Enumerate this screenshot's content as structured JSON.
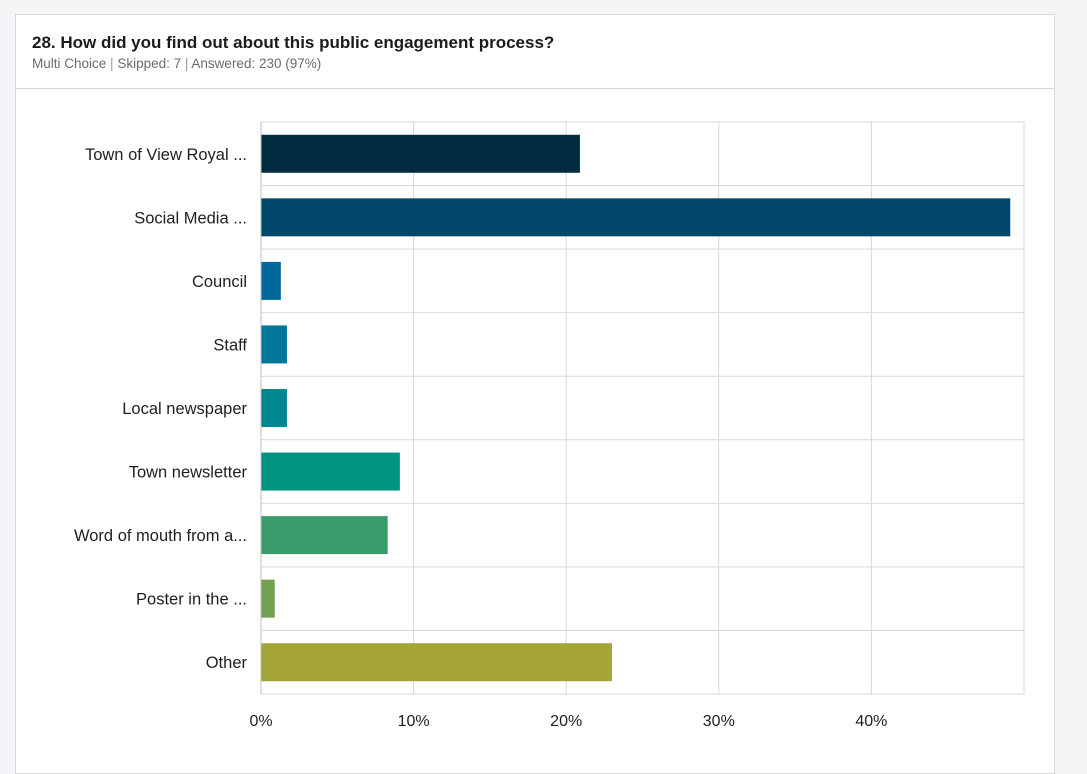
{
  "question": {
    "title": "28. How did you find out about this public engagement process?",
    "type": "Multi Choice",
    "skipped": "Skipped: 7",
    "answered": "Answered: 230 (97%)",
    "separator": "|"
  },
  "chart_data": {
    "type": "bar",
    "orientation": "horizontal",
    "categories": [
      "Town of View Royal ...",
      "Social Media ...",
      "Council",
      "Staff",
      "Local newspaper",
      "Town newsletter",
      "Word of mouth from a...",
      "Poster in the ...",
      "Other"
    ],
    "values": [
      20.9,
      49.1,
      1.3,
      1.7,
      1.7,
      9.1,
      8.3,
      0.9,
      23.0
    ],
    "colors": [
      "#012b3e",
      "#00476a",
      "#00699a",
      "#007799",
      "#00868f",
      "#00937f",
      "#3a9a6a",
      "#72a04e",
      "#a4a439"
    ],
    "xlim": [
      0,
      50
    ],
    "xticks": [
      0,
      10,
      20,
      30,
      40
    ],
    "xtick_labels": [
      "0%",
      "10%",
      "20%",
      "30%",
      "40%"
    ],
    "grid": true,
    "title": "",
    "xlabel": "",
    "ylabel": ""
  }
}
